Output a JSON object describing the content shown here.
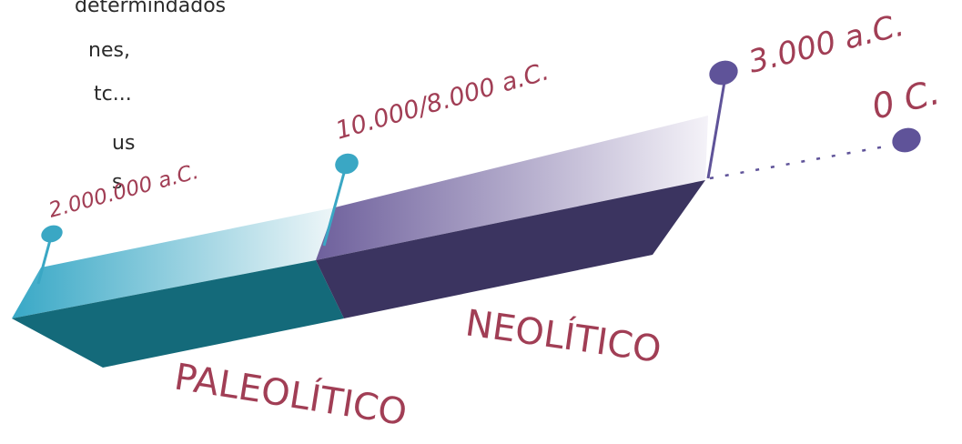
{
  "text_fragments": [
    "determindados",
    "nes,",
    "tc...",
    "us",
    "s"
  ],
  "colors": {
    "paleo_front": "#146a7a",
    "paleo_top": "#38a8c6",
    "neo_front": "#3b3460",
    "neo_top": "#6e609c",
    "label": "#a13e55",
    "paleo_pin": "#3aa7c4",
    "neo_pin": "#5f5399"
  },
  "dates": {
    "d1": "2.000.000 a.C.",
    "d2": "10.000/8.000 a.C.",
    "d3": "3.000 a.C.",
    "d4": "0 C."
  },
  "periods": {
    "paleolithic": "PALEOLÍTICO",
    "neolithic": "NEOLÍTICO"
  }
}
